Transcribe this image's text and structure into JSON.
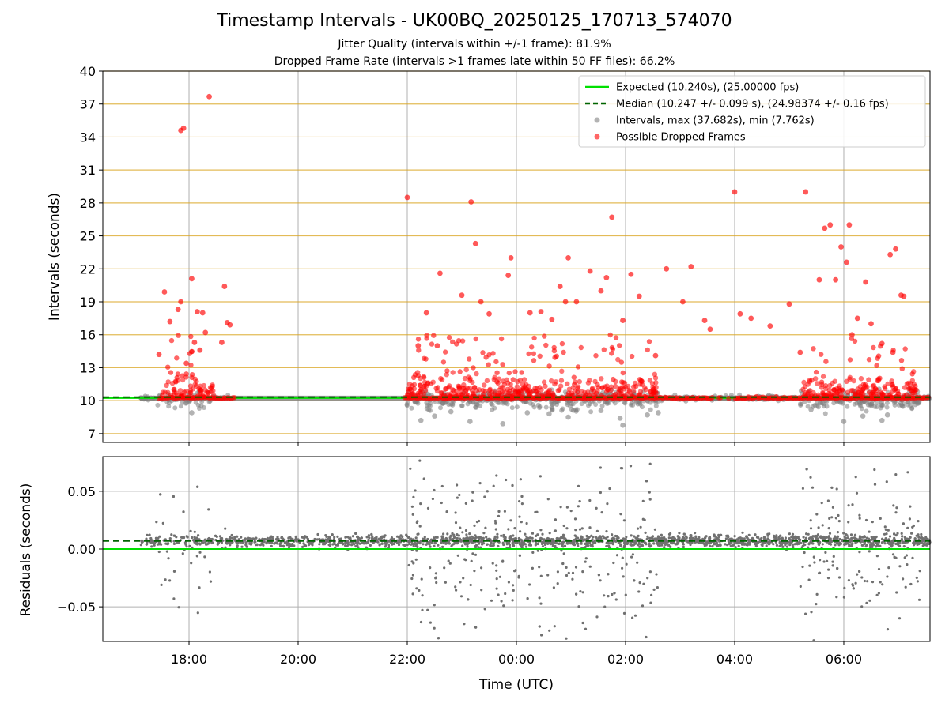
{
  "figure": {
    "title": "Timestamp Intervals - UK00BQ_20250125_170713_574070",
    "subtitle1": "Jitter Quality (intervals within +/-1 frame): 81.9%",
    "subtitle2": "Dropped Frame Rate (intervals >1 frames late within 50 FF files): 66.2%"
  },
  "colors": {
    "expected": "#00e000",
    "median": "#006400",
    "intervals": "#808080",
    "dropped": "#ff0000",
    "hline": "#daa520",
    "grid": "#b0b0b0"
  },
  "chart_data": [
    {
      "type": "scatter",
      "ylabel": "Intervals (seconds)",
      "xlabel": "",
      "x_range_hours": [
        16.42,
        31.58
      ],
      "xticks": [
        {
          "hour": 18,
          "label": "18:00"
        },
        {
          "hour": 20,
          "label": "20:00"
        },
        {
          "hour": 22,
          "label": "22:00"
        },
        {
          "hour": 24,
          "label": "00:00"
        },
        {
          "hour": 26,
          "label": "02:00"
        },
        {
          "hour": 28,
          "label": "04:00"
        },
        {
          "hour": 30,
          "label": "06:00"
        }
      ],
      "ylim": [
        6.2,
        40
      ],
      "yticks": [
        7,
        10,
        13,
        16,
        19,
        22,
        25,
        28,
        31,
        34,
        37,
        40
      ],
      "hlines": [
        7,
        10,
        13,
        16,
        19,
        22,
        25,
        28,
        31,
        34,
        37,
        40
      ],
      "grid": "vertical",
      "legend": {
        "placement": "top-right",
        "entries": [
          {
            "label": "Expected (10.240s), (25.00000 fps)",
            "style": "line",
            "color": "#00e000"
          },
          {
            "label": "Median (10.247 +/- 0.099 s), (24.98374 +/- 0.16 fps)",
            "style": "dashed",
            "color": "#006400"
          },
          {
            "label": "Intervals, max (37.682s), min (7.762s)",
            "style": "dot",
            "color": "#808080"
          },
          {
            "label": "Possible Dropped Frames",
            "style": "dot",
            "color": "#ff0000"
          }
        ]
      },
      "expected_value": 10.24,
      "median_value": 10.247,
      "data_span_hours": [
        17.1,
        31.58
      ],
      "active_segments_hours": [
        [
          17.1,
          18.85
        ],
        [
          21.95,
          31.58
        ]
      ],
      "series": [
        {
          "name": "Possible Dropped Frames",
          "x_hours": [
            18.37,
            18.65,
            17.85,
            17.9,
            18.7,
            17.45,
            17.55,
            17.85,
            18.05,
            18.15,
            18.25,
            17.65,
            17.8,
            17.95,
            18.3,
            18.1,
            18.2,
            18.75,
            18.6,
            22.0,
            23.17,
            25.75,
            23.25,
            24.95,
            28.0,
            29.3,
            29.65,
            29.75,
            29.95,
            30.1,
            30.05,
            25.35,
            25.65,
            24.8,
            25.55,
            26.1,
            26.75,
            27.2,
            27.45,
            23.9,
            24.25,
            23.5,
            23.85,
            22.6,
            22.35,
            23.0,
            24.45,
            25.1,
            26.25,
            27.05,
            28.3,
            28.65,
            29.85,
            30.25,
            29.55,
            30.5,
            30.85,
            30.95,
            31.05,
            31.1,
            22.2,
            22.55,
            23.35,
            24.65,
            24.9,
            25.95,
            26.55,
            27.55,
            28.1,
            29.0,
            29.2,
            30.15,
            30.4,
            30.7,
            30.9
          ],
          "y_values": [
            37.68,
            20.4,
            34.6,
            34.8,
            17.1,
            14.2,
            19.9,
            19.0,
            21.1,
            18.1,
            18.0,
            17.2,
            18.3,
            13.4,
            16.2,
            15.3,
            14.6,
            16.9,
            15.3,
            28.5,
            28.1,
            26.7,
            24.3,
            23.0,
            29.0,
            29.0,
            25.7,
            26.0,
            24.0,
            26.0,
            22.6,
            21.8,
            21.2,
            20.4,
            20.0,
            21.5,
            22.0,
            22.2,
            17.3,
            23.0,
            18.0,
            17.9,
            21.4,
            21.6,
            18.0,
            19.6,
            18.1,
            19.0,
            19.5,
            19.0,
            17.5,
            16.8,
            21.0,
            17.5,
            21.0,
            17.0,
            23.3,
            23.8,
            19.6,
            19.5,
            15.0,
            15.0,
            19.0,
            17.4,
            19.0,
            17.3,
            14.1,
            16.5,
            17.9,
            18.8,
            14.4,
            16.0,
            20.8,
            15.2,
            14.4
          ]
        },
        {
          "name": "Intervals, max (37.682s), min (7.762s)",
          "x_hours": [
            18.05,
            22.25,
            23.15,
            23.75,
            25.95,
            30.0,
            30.7,
            22.5,
            24.2,
            24.95,
            25.9,
            26.4,
            30.35,
            22.8,
            24.6,
            25.55,
            26.6,
            29.4,
            30.8
          ],
          "y_values": [
            8.9,
            8.2,
            8.1,
            7.9,
            7.76,
            8.1,
            8.2,
            8.6,
            8.9,
            8.5,
            8.4,
            8.7,
            8.6,
            9.0,
            8.8,
            9.1,
            8.9,
            9.2,
            8.7
          ]
        }
      ]
    },
    {
      "type": "scatter",
      "ylabel": "Residuals (seconds)",
      "xlabel": "Time (UTC)",
      "x_range_hours": [
        16.42,
        31.58
      ],
      "ylim": [
        -0.08,
        0.08
      ],
      "yticks": [
        {
          "value": 0.05,
          "label": "0.05"
        },
        {
          "value": 0.0,
          "label": "0.00"
        },
        {
          "value": -0.05,
          "label": "−0.05"
        }
      ],
      "grid": "both",
      "zero_line": 0.0,
      "median_residual": 0.007,
      "typical_band": [
        0.001,
        0.012
      ]
    }
  ]
}
